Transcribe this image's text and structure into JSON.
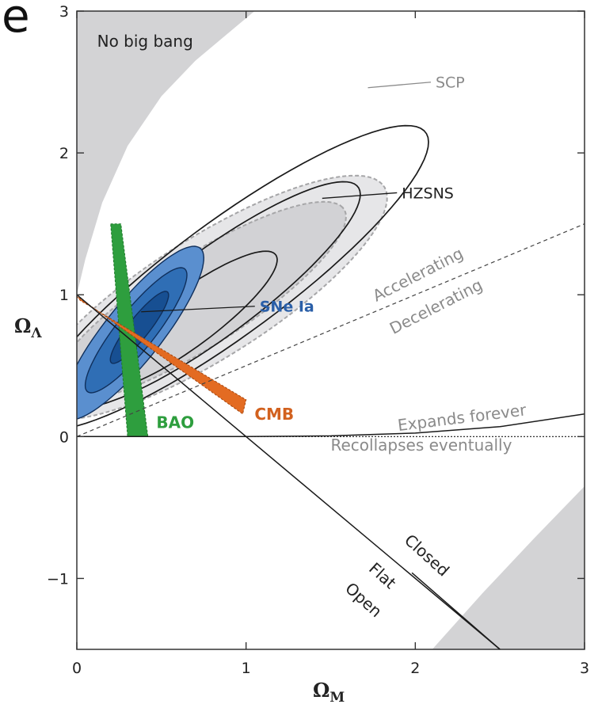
{
  "panel_label": "e",
  "chart_data": {
    "type": "contour",
    "xlabel": "Ω",
    "xlabel_sub": "M",
    "ylabel": "Ω",
    "ylabel_sub": "Λ",
    "xlim": [
      0,
      3
    ],
    "ylim": [
      -1.5,
      3
    ],
    "x_ticks": [
      {
        "value": 0,
        "label": "0"
      },
      {
        "value": 1,
        "label": "1"
      },
      {
        "value": 2,
        "label": "2"
      },
      {
        "value": 3,
        "label": "3"
      }
    ],
    "y_ticks": [
      {
        "value": -1,
        "label": "−1"
      },
      {
        "value": 0,
        "label": "0"
      },
      {
        "value": 1,
        "label": "1"
      },
      {
        "value": 2,
        "label": "2"
      },
      {
        "value": 3,
        "label": "3"
      }
    ],
    "regions": {
      "no_big_bang": {
        "label": "No big bang",
        "boundary": [
          [
            0,
            1.0
          ],
          [
            0.05,
            1.25
          ],
          [
            0.15,
            1.65
          ],
          [
            0.3,
            2.05
          ],
          [
            0.5,
            2.4
          ],
          [
            0.7,
            2.65
          ],
          [
            0.9,
            2.85
          ],
          [
            1.05,
            3.0
          ]
        ]
      },
      "recollapse_zone": {
        "polygon": [
          [
            2.1,
            -1.5
          ],
          [
            3.0,
            -1.5
          ],
          [
            3.0,
            -0.35
          ],
          [
            2.7,
            -0.72
          ],
          [
            2.4,
            -1.1
          ]
        ]
      }
    },
    "datasets": [
      {
        "name": "SCP",
        "style": "filled gray contours",
        "ellipses": [
          {
            "center": [
              0.78,
              0.98
            ],
            "semi_axes": [
              1.3,
              0.4
            ],
            "angle_deg": 38,
            "level": "outer"
          },
          {
            "center": [
              0.72,
              0.95
            ],
            "semi_axes": [
              1.08,
              0.3
            ],
            "angle_deg": 38,
            "level": "inner"
          }
        ]
      },
      {
        "name": "HZSNS",
        "style": "black line contours",
        "ellipses": [
          {
            "center": [
              0.9,
              1.12
            ],
            "semi_axes": [
              1.55,
              0.37
            ],
            "angle_deg": 42,
            "level": "3-sigma"
          },
          {
            "center": [
              0.8,
              1.0
            ],
            "semi_axes": [
              1.15,
              0.28
            ],
            "angle_deg": 42,
            "level": "2-sigma"
          },
          {
            "center": [
              0.65,
              0.82
            ],
            "semi_axes": [
              0.7,
              0.18
            ],
            "angle_deg": 42,
            "level": "1-sigma"
          }
        ]
      },
      {
        "name": "SNe Ia",
        "color": "#2f6eb5",
        "ellipses": [
          {
            "center": [
              0.33,
              0.73
            ],
            "semi_axes": [
              0.72,
              0.18
            ],
            "angle_deg": 57,
            "level": "3-sigma",
            "color": "#5a8fcf"
          },
          {
            "center": [
              0.35,
              0.75
            ],
            "semi_axes": [
              0.52,
              0.12
            ],
            "angle_deg": 57,
            "level": "2-sigma",
            "color": "#2f6eb5"
          },
          {
            "center": [
              0.37,
              0.77
            ],
            "semi_axes": [
              0.3,
              0.065
            ],
            "angle_deg": 57,
            "level": "1-sigma",
            "color": "#174f92"
          }
        ]
      },
      {
        "name": "BAO",
        "color": "#2e9e3e",
        "band": [
          [
            0.2,
            1.5
          ],
          [
            0.26,
            1.5
          ],
          [
            0.42,
            0.0
          ],
          [
            0.3,
            0.0
          ]
        ]
      },
      {
        "name": "CMB",
        "color": "#e36b22",
        "band": [
          [
            0.0,
            0.99
          ],
          [
            0.02,
            0.96
          ],
          [
            1.0,
            0.26
          ],
          [
            0.98,
            0.16
          ]
        ]
      }
    ],
    "lines": [
      {
        "name": "Flat",
        "from": [
          0,
          1
        ],
        "to": [
          2.5,
          -1.5
        ],
        "style": "solid"
      },
      {
        "name": "Accelerating/Decelerating",
        "from": [
          0,
          0
        ],
        "to": [
          3,
          1.5
        ],
        "style": "dashed"
      },
      {
        "name": "Expands forever/Recollapses eventually",
        "points": [
          [
            0,
            0
          ],
          [
            1.0,
            0
          ],
          [
            1.5,
            0.005
          ],
          [
            2.0,
            0.025
          ],
          [
            2.5,
            0.07
          ],
          [
            3.0,
            0.16
          ]
        ],
        "style": "solid"
      },
      {
        "name": "zero line",
        "from": [
          0,
          0
        ],
        "to": [
          3,
          0
        ],
        "style": "dotted"
      }
    ],
    "annotations": [
      {
        "text": "No big bang",
        "at": [
          0.12,
          2.75
        ],
        "color": "#222222"
      },
      {
        "text": "SCP",
        "at": [
          2.12,
          2.46
        ],
        "color": "#8a8a8a",
        "leader_from": [
          1.72,
          2.46
        ]
      },
      {
        "text": "HZSNS",
        "at": [
          1.92,
          1.68
        ],
        "color": "#222222",
        "leader_from": [
          1.45,
          1.68
        ]
      },
      {
        "text": "SNe Ia",
        "at": [
          1.08,
          0.88
        ],
        "color": "#2a5fa8",
        "leader_from": [
          0.38,
          0.88
        ]
      },
      {
        "text": "BAO",
        "at": [
          0.47,
          0.06
        ],
        "color": "#2e9e3e"
      },
      {
        "text": "CMB",
        "at": [
          1.05,
          0.12
        ],
        "color": "#d2611e"
      },
      {
        "text": "Accelerating",
        "at": [
          1.77,
          0.95
        ],
        "color": "#8a8a8a",
        "rotate_deg": -27
      },
      {
        "text": "Decelerating",
        "at": [
          1.87,
          0.72
        ],
        "color": "#8a8a8a",
        "rotate_deg": -27
      },
      {
        "text": "Expands forever",
        "at": [
          1.9,
          0.04
        ],
        "color": "#8a8a8a",
        "rotate_deg": -7
      },
      {
        "text": "Recollapses eventually",
        "at": [
          1.5,
          -0.1
        ],
        "color": "#8a8a8a",
        "rotate_deg": 0
      },
      {
        "text": "Closed",
        "at": [
          1.93,
          -0.74
        ],
        "color": "#222222",
        "rotate_deg": 42
      },
      {
        "text": "Flat",
        "at": [
          1.72,
          -0.94
        ],
        "color": "#222222",
        "rotate_deg": 42
      },
      {
        "text": "Open",
        "at": [
          1.58,
          -1.08
        ],
        "color": "#222222",
        "rotate_deg": 42
      }
    ]
  }
}
